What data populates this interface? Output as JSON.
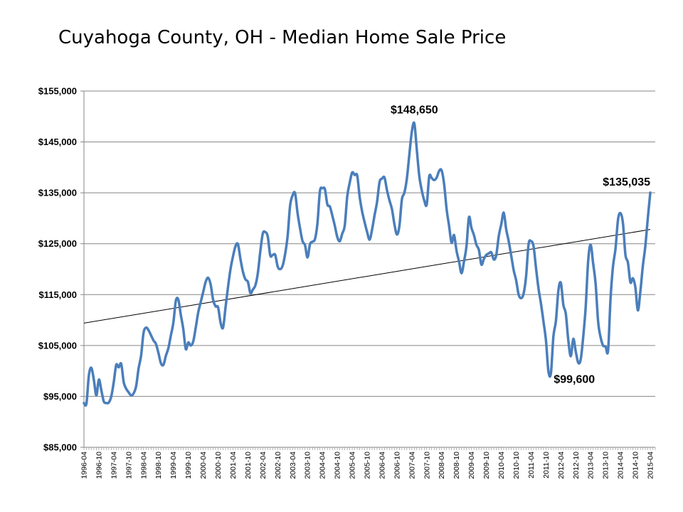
{
  "chart_data": {
    "type": "line",
    "title": "Cuyahoga County, OH - Median Home Sale Price",
    "xlabel": "",
    "ylabel": "",
    "ylim": [
      85000,
      155000
    ],
    "y_ticks": [
      "$85,000",
      "$95,000",
      "$105,000",
      "$115,000",
      "$125,000",
      "$135,000",
      "$145,000",
      "$155,000"
    ],
    "x_tick_labels": [
      "1996-04",
      "1996-10",
      "1997-04",
      "1997-10",
      "1998-04",
      "1998-10",
      "1999-04",
      "1999-10",
      "2000-04",
      "2000-10",
      "2001-04",
      "2001-10",
      "2002-04",
      "2002-10",
      "2003-04",
      "2003-10",
      "2004-04",
      "2004-10",
      "2005-04",
      "2005-10",
      "2006-04",
      "2006-10",
      "2007-04",
      "2007-10",
      "2008-04",
      "2008-10",
      "2009-04",
      "2009-10",
      "2010-04",
      "2010-10",
      "2011-04",
      "2011-10",
      "2012-04",
      "2012-10",
      "2013-04",
      "2013-10",
      "2014-04",
      "2014-10",
      "2015-04"
    ],
    "x_start": "1996-04",
    "x_end": "2015-06",
    "grid": "horizontal",
    "legend": "none",
    "series": [
      {
        "color": "#4a7ebb",
        "keypoints": [
          [
            "1996-04",
            93700
          ],
          [
            "1996-05",
            93600
          ],
          [
            "1996-06",
            99200
          ],
          [
            "1996-07",
            100600
          ],
          [
            "1996-08",
            98200
          ],
          [
            "1996-09",
            95200
          ],
          [
            "1996-10",
            98300
          ],
          [
            "1996-11",
            96200
          ],
          [
            "1996-12",
            94000
          ],
          [
            "1997-01",
            93700
          ],
          [
            "1997-02",
            93800
          ],
          [
            "1997-03",
            95000
          ],
          [
            "1997-04",
            97800
          ],
          [
            "1997-05",
            101200
          ],
          [
            "1997-06",
            100700
          ],
          [
            "1997-07",
            101400
          ],
          [
            "1997-08",
            97800
          ],
          [
            "1997-09",
            96500
          ],
          [
            "1997-10",
            95800
          ],
          [
            "1997-11",
            95200
          ],
          [
            "1997-12",
            95600
          ],
          [
            "1998-01",
            97000
          ],
          [
            "1998-02",
            100500
          ],
          [
            "1998-03",
            103000
          ],
          [
            "1998-04",
            107500
          ],
          [
            "1998-05",
            108500
          ],
          [
            "1998-06",
            108000
          ],
          [
            "1998-07",
            107000
          ],
          [
            "1998-08",
            106000
          ],
          [
            "1998-09",
            105300
          ],
          [
            "1998-10",
            103500
          ],
          [
            "1998-11",
            101500
          ],
          [
            "1998-12",
            101200
          ],
          [
            "1999-01",
            103000
          ],
          [
            "1999-02",
            104500
          ],
          [
            "1999-03",
            107000
          ],
          [
            "1999-04",
            109500
          ],
          [
            "1999-05",
            113800
          ],
          [
            "1999-06",
            114000
          ],
          [
            "1999-07",
            111000
          ],
          [
            "1999-08",
            108200
          ],
          [
            "1999-09",
            104300
          ],
          [
            "1999-10",
            105600
          ],
          [
            "1999-11",
            105000
          ],
          [
            "1999-12",
            105800
          ],
          [
            "2000-01",
            108500
          ],
          [
            "2000-02",
            111500
          ],
          [
            "2000-03",
            113500
          ],
          [
            "2000-04",
            115500
          ],
          [
            "2000-05",
            117500
          ],
          [
            "2000-06",
            118300
          ],
          [
            "2000-07",
            117000
          ],
          [
            "2000-08",
            114000
          ],
          [
            "2000-09",
            112700
          ],
          [
            "2000-10",
            112500
          ],
          [
            "2000-11",
            109500
          ],
          [
            "2000-12",
            108500
          ],
          [
            "2001-01",
            112500
          ],
          [
            "2001-02",
            116500
          ],
          [
            "2001-03",
            120000
          ],
          [
            "2001-04",
            122500
          ],
          [
            "2001-05",
            124500
          ],
          [
            "2001-06",
            124900
          ],
          [
            "2001-07",
            122000
          ],
          [
            "2001-08",
            119500
          ],
          [
            "2001-09",
            118000
          ],
          [
            "2001-10",
            117500
          ],
          [
            "2001-11",
            115300
          ],
          [
            "2001-12",
            116000
          ],
          [
            "2002-01",
            116800
          ],
          [
            "2002-02",
            119200
          ],
          [
            "2002-03",
            123500
          ],
          [
            "2002-04",
            127000
          ],
          [
            "2002-05",
            127300
          ],
          [
            "2002-06",
            126400
          ],
          [
            "2002-07",
            122700
          ],
          [
            "2002-08",
            122800
          ],
          [
            "2002-09",
            122800
          ],
          [
            "2002-10",
            120500
          ],
          [
            "2002-11",
            120000
          ],
          [
            "2002-12",
            120700
          ],
          [
            "2003-01",
            123000
          ],
          [
            "2003-02",
            126500
          ],
          [
            "2003-03",
            132500
          ],
          [
            "2003-04",
            134500
          ],
          [
            "2003-05",
            134900
          ],
          [
            "2003-06",
            131000
          ],
          [
            "2003-07",
            128000
          ],
          [
            "2003-08",
            125500
          ],
          [
            "2003-09",
            124700
          ],
          [
            "2003-10",
            122300
          ],
          [
            "2003-11",
            124900
          ],
          [
            "2003-12",
            125400
          ],
          [
            "2004-01",
            125900
          ],
          [
            "2004-02",
            129000
          ],
          [
            "2004-03",
            135300
          ],
          [
            "2004-04",
            135900
          ],
          [
            "2004-05",
            135700
          ],
          [
            "2004-06",
            132700
          ],
          [
            "2004-07",
            132300
          ],
          [
            "2004-08",
            130500
          ],
          [
            "2004-09",
            128500
          ],
          [
            "2004-10",
            126300
          ],
          [
            "2004-11",
            125500
          ],
          [
            "2004-12",
            127000
          ],
          [
            "2005-01",
            128600
          ],
          [
            "2005-02",
            134300
          ],
          [
            "2005-03",
            137000
          ],
          [
            "2005-04",
            139000
          ],
          [
            "2005-05",
            138500
          ],
          [
            "2005-06",
            138400
          ],
          [
            "2005-07",
            134200
          ],
          [
            "2005-08",
            131300
          ],
          [
            "2005-09",
            129200
          ],
          [
            "2005-10",
            127300
          ],
          [
            "2005-11",
            125800
          ],
          [
            "2005-12",
            127800
          ],
          [
            "2006-01",
            130600
          ],
          [
            "2006-02",
            133200
          ],
          [
            "2006-03",
            137100
          ],
          [
            "2006-04",
            137800
          ],
          [
            "2006-05",
            138000
          ],
          [
            "2006-06",
            135500
          ],
          [
            "2006-07",
            133500
          ],
          [
            "2006-08",
            131800
          ],
          [
            "2006-09",
            128800
          ],
          [
            "2006-10",
            126800
          ],
          [
            "2006-11",
            128500
          ],
          [
            "2006-12",
            133700
          ],
          [
            "2007-01",
            135000
          ],
          [
            "2007-02",
            137800
          ],
          [
            "2007-03",
            142500
          ],
          [
            "2007-04",
            147000
          ],
          [
            "2007-05",
            148650
          ],
          [
            "2007-06",
            143500
          ],
          [
            "2007-07",
            138300
          ],
          [
            "2007-08",
            135500
          ],
          [
            "2007-09",
            133500
          ],
          [
            "2007-10",
            132700
          ],
          [
            "2007-11",
            138200
          ],
          [
            "2007-12",
            137900
          ],
          [
            "2008-01",
            137500
          ],
          [
            "2008-02",
            138000
          ],
          [
            "2008-03",
            139300
          ],
          [
            "2008-04",
            139400
          ],
          [
            "2008-05",
            136700
          ],
          [
            "2008-06",
            131800
          ],
          [
            "2008-07",
            128500
          ],
          [
            "2008-08",
            125200
          ],
          [
            "2008-09",
            126700
          ],
          [
            "2008-10",
            123600
          ],
          [
            "2008-11",
            121500
          ],
          [
            "2008-12",
            119200
          ],
          [
            "2009-01",
            121500
          ],
          [
            "2009-02",
            124500
          ],
          [
            "2009-03",
            130200
          ],
          [
            "2009-04",
            128100
          ],
          [
            "2009-05",
            126700
          ],
          [
            "2009-06",
            124800
          ],
          [
            "2009-07",
            123800
          ],
          [
            "2009-08",
            120900
          ],
          [
            "2009-09",
            122000
          ],
          [
            "2009-10",
            122800
          ],
          [
            "2009-11",
            123100
          ],
          [
            "2009-12",
            123300
          ],
          [
            "2010-01",
            121900
          ],
          [
            "2010-02",
            122800
          ],
          [
            "2010-03",
            126500
          ],
          [
            "2010-04",
            128800
          ],
          [
            "2010-05",
            131100
          ],
          [
            "2010-06",
            127800
          ],
          [
            "2010-07",
            125500
          ],
          [
            "2010-08",
            122700
          ],
          [
            "2010-09",
            119800
          ],
          [
            "2010-10",
            117800
          ],
          [
            "2010-11",
            115000
          ],
          [
            "2010-12",
            114300
          ],
          [
            "2011-01",
            115200
          ],
          [
            "2011-02",
            118600
          ],
          [
            "2011-03",
            124900
          ],
          [
            "2011-04",
            125500
          ],
          [
            "2011-05",
            124500
          ],
          [
            "2011-06",
            120200
          ],
          [
            "2011-07",
            116200
          ],
          [
            "2011-08",
            113200
          ],
          [
            "2011-09",
            109700
          ],
          [
            "2011-10",
            106000
          ],
          [
            "2011-11",
            99900
          ],
          [
            "2011-12",
            99600
          ],
          [
            "2012-01",
            106800
          ],
          [
            "2012-02",
            109800
          ],
          [
            "2012-03",
            115800
          ],
          [
            "2012-04",
            117300
          ],
          [
            "2012-05",
            113000
          ],
          [
            "2012-06",
            111200
          ],
          [
            "2012-07",
            106000
          ],
          [
            "2012-08",
            102900
          ],
          [
            "2012-09",
            106300
          ],
          [
            "2012-10",
            103800
          ],
          [
            "2012-11",
            101600
          ],
          [
            "2012-12",
            102300
          ],
          [
            "2013-01",
            106700
          ],
          [
            "2013-02",
            112600
          ],
          [
            "2013-03",
            121700
          ],
          [
            "2013-04",
            124800
          ],
          [
            "2013-05",
            121100
          ],
          [
            "2013-06",
            117100
          ],
          [
            "2013-07",
            109700
          ],
          [
            "2013-08",
            106600
          ],
          [
            "2013-09",
            105000
          ],
          [
            "2013-10",
            104800
          ],
          [
            "2013-11",
            104000
          ],
          [
            "2013-12",
            114200
          ],
          [
            "2014-01",
            120600
          ],
          [
            "2014-02",
            124000
          ],
          [
            "2014-03",
            129700
          ],
          [
            "2014-04",
            131000
          ],
          [
            "2014-05",
            129000
          ],
          [
            "2014-06",
            122800
          ],
          [
            "2014-07",
            121300
          ],
          [
            "2014-08",
            117400
          ],
          [
            "2014-09",
            118200
          ],
          [
            "2014-10",
            116400
          ],
          [
            "2014-11",
            111900
          ],
          [
            "2014-12",
            115600
          ],
          [
            "2015-01",
            120600
          ],
          [
            "2015-02",
            124500
          ],
          [
            "2015-03",
            130000
          ],
          [
            "2015-04",
            135035
          ]
        ]
      }
    ],
    "trendline": {
      "type": "linear",
      "color": "#000000",
      "start": [
        "1996-04",
        109400
      ],
      "end": [
        "2015-04",
        127800
      ]
    },
    "annotations": [
      {
        "text": "$148,650",
        "x": "2007-05",
        "y": 148650,
        "anchor": "above"
      },
      {
        "text": "$135,035",
        "x": "2015-04",
        "y": 135035,
        "anchor": "above-left"
      },
      {
        "text": "$99,600",
        "x": "2011-12",
        "y": 99600,
        "anchor": "below-right"
      }
    ]
  }
}
